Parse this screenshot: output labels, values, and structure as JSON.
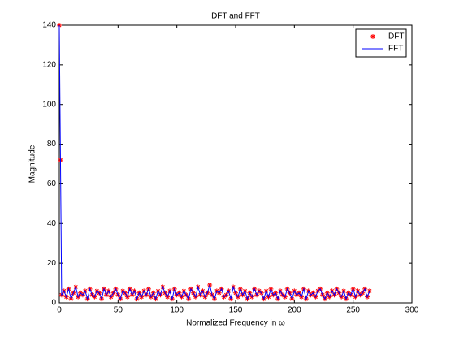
{
  "chart_data": {
    "type": "line",
    "title": "DFT and FFT",
    "x_label": "Normalized Frequency in  ω",
    "y_label": "Magnitude",
    "x": [
      0,
      1,
      2,
      4,
      6,
      8,
      10,
      12,
      14,
      16,
      18,
      20,
      22,
      24,
      26,
      28,
      30,
      32,
      34,
      36,
      38,
      40,
      42,
      44,
      46,
      48,
      50,
      52,
      54,
      56,
      58,
      60,
      62,
      64,
      66,
      68,
      70,
      72,
      74,
      76,
      78,
      80,
      82,
      84,
      86,
      88,
      90,
      92,
      94,
      96,
      98,
      100,
      102,
      104,
      106,
      108,
      110,
      112,
      114,
      116,
      118,
      120,
      122,
      124,
      126,
      128,
      130,
      132,
      134,
      136,
      138,
      140,
      142,
      144,
      146,
      148,
      150,
      152,
      154,
      156,
      158,
      160,
      162,
      164,
      166,
      168,
      170,
      172,
      174,
      176,
      178,
      180,
      182,
      184,
      186,
      188,
      190,
      192,
      194,
      196,
      198,
      200,
      202,
      204,
      206,
      208,
      210,
      212,
      214,
      216,
      218,
      220,
      222,
      224,
      226,
      228,
      230,
      232,
      234,
      236,
      238,
      240,
      242,
      244,
      246,
      248,
      250,
      252,
      254,
      256,
      258,
      260,
      262,
      264
    ],
    "series": [
      {
        "name": "DFT",
        "color": "#ff0000",
        "style": "marker",
        "values": [
          140,
          72,
          4,
          6,
          3,
          7,
          2,
          5,
          8,
          3,
          5,
          4,
          6,
          2,
          7,
          4,
          3,
          6,
          5,
          2,
          7,
          4,
          6,
          3,
          5,
          7,
          4,
          2,
          6,
          5,
          3,
          7,
          4,
          6,
          2,
          5,
          3,
          6,
          4,
          7,
          3,
          5,
          2,
          6,
          4,
          8,
          5,
          3,
          6,
          2,
          7,
          4,
          5,
          3,
          6,
          4,
          2,
          7,
          5,
          3,
          8,
          4,
          6,
          3,
          5,
          9,
          4,
          2,
          6,
          5,
          7,
          3,
          4,
          6,
          2,
          8,
          5,
          3,
          7,
          4,
          6,
          2,
          5,
          3,
          7,
          4,
          6,
          5,
          2,
          6,
          3,
          7,
          4,
          5,
          2,
          6,
          4,
          3,
          7,
          5,
          2,
          6,
          4,
          5,
          3,
          7,
          2,
          6,
          4,
          5,
          3,
          6,
          7,
          4,
          2,
          5,
          3,
          6,
          4,
          7,
          5,
          3,
          6,
          2,
          5,
          4,
          7,
          3,
          6,
          4,
          5,
          7,
          3,
          6
        ]
      },
      {
        "name": "FFT",
        "color": "#0000ff",
        "style": "line",
        "values": [
          140,
          72,
          4,
          6,
          3,
          7,
          2,
          5,
          8,
          3,
          5,
          4,
          6,
          2,
          7,
          4,
          3,
          6,
          5,
          2,
          7,
          4,
          6,
          3,
          5,
          7,
          4,
          2,
          6,
          5,
          3,
          7,
          4,
          6,
          2,
          5,
          3,
          6,
          4,
          7,
          3,
          5,
          2,
          6,
          4,
          8,
          5,
          3,
          6,
          2,
          7,
          4,
          5,
          3,
          6,
          4,
          2,
          7,
          5,
          3,
          8,
          4,
          6,
          3,
          5,
          9,
          4,
          2,
          6,
          5,
          7,
          3,
          4,
          6,
          2,
          8,
          5,
          3,
          7,
          4,
          6,
          2,
          5,
          3,
          7,
          4,
          6,
          5,
          2,
          6,
          3,
          7,
          4,
          5,
          2,
          6,
          4,
          3,
          7,
          5,
          2,
          6,
          4,
          5,
          3,
          7,
          2,
          6,
          4,
          5,
          3,
          6,
          7,
          4,
          2,
          5,
          3,
          6,
          4,
          7,
          5,
          3,
          6,
          2,
          5,
          4,
          7,
          3,
          6,
          4,
          5,
          7,
          3,
          6
        ]
      }
    ],
    "xlim": [
      0,
      300
    ],
    "xticks": [
      0,
      50,
      100,
      150,
      200,
      250,
      300
    ],
    "ylim": [
      0,
      140
    ],
    "yticks": [
      0,
      20,
      40,
      60,
      80,
      100,
      120,
      140
    ],
    "legend": "upper right"
  }
}
